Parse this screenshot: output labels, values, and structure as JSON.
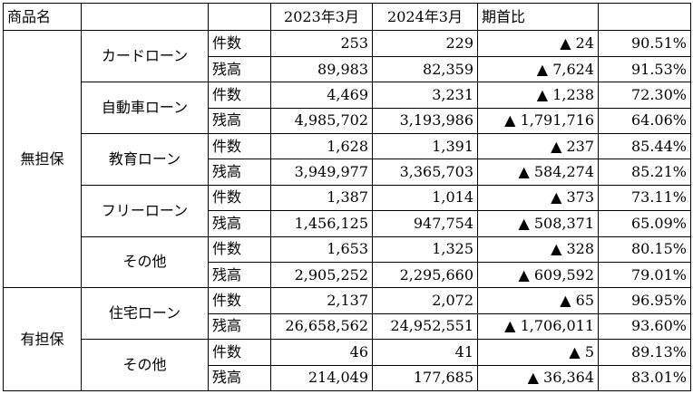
{
  "header": {
    "product_name": "商品名",
    "col_2023": "2023年3月",
    "col_2024": "2024年3月",
    "col_yoy": "期首比"
  },
  "groups": [
    {
      "category": "無担保",
      "products": [
        {
          "name": "カードローン",
          "rows": [
            {
              "metric": "件数",
              "v2023": "253",
              "v2024": "229",
              "change": "▲ 24",
              "ratio": "90.51%"
            },
            {
              "metric": "残高",
              "v2023": "89,983",
              "v2024": "82,359",
              "change": "▲ 7,624",
              "ratio": "91.53%"
            }
          ]
        },
        {
          "name": "自動車ローン",
          "rows": [
            {
              "metric": "件数",
              "v2023": "4,469",
              "v2024": "3,231",
              "change": "▲ 1,238",
              "ratio": "72.30%"
            },
            {
              "metric": "残高",
              "v2023": "4,985,702",
              "v2024": "3,193,986",
              "change": "▲ 1,791,716",
              "ratio": "64.06%"
            }
          ]
        },
        {
          "name": "教育ローン",
          "rows": [
            {
              "metric": "件数",
              "v2023": "1,628",
              "v2024": "1,391",
              "change": "▲ 237",
              "ratio": "85.44%"
            },
            {
              "metric": "残高",
              "v2023": "3,949,977",
              "v2024": "3,365,703",
              "change": "▲ 584,274",
              "ratio": "85.21%"
            }
          ]
        },
        {
          "name": "フリーローン",
          "rows": [
            {
              "metric": "件数",
              "v2023": "1,387",
              "v2024": "1,014",
              "change": "▲ 373",
              "ratio": "73.11%"
            },
            {
              "metric": "残高",
              "v2023": "1,456,125",
              "v2024": "947,754",
              "change": "▲ 508,371",
              "ratio": "65.09%"
            }
          ]
        },
        {
          "name": "その他",
          "rows": [
            {
              "metric": "件数",
              "v2023": "1,653",
              "v2024": "1,325",
              "change": "▲ 328",
              "ratio": "80.15%"
            },
            {
              "metric": "残高",
              "v2023": "2,905,252",
              "v2024": "2,295,660",
              "change": "▲ 609,592",
              "ratio": "79.01%"
            }
          ]
        }
      ]
    },
    {
      "category": "有担保",
      "products": [
        {
          "name": "住宅ローン",
          "rows": [
            {
              "metric": "件数",
              "v2023": "2,137",
              "v2024": "2,072",
              "change": "▲ 65",
              "ratio": "96.95%"
            },
            {
              "metric": "残高",
              "v2023": "26,658,562",
              "v2024": "24,952,551",
              "change": "▲ 1,706,011",
              "ratio": "93.60%"
            }
          ]
        },
        {
          "name": "その他",
          "rows": [
            {
              "metric": "件数",
              "v2023": "46",
              "v2024": "41",
              "change": "▲ 5",
              "ratio": "89.13%"
            },
            {
              "metric": "残高",
              "v2023": "214,049",
              "v2024": "177,685",
              "change": "▲ 36,364",
              "ratio": "83.01%"
            }
          ]
        }
      ]
    }
  ]
}
